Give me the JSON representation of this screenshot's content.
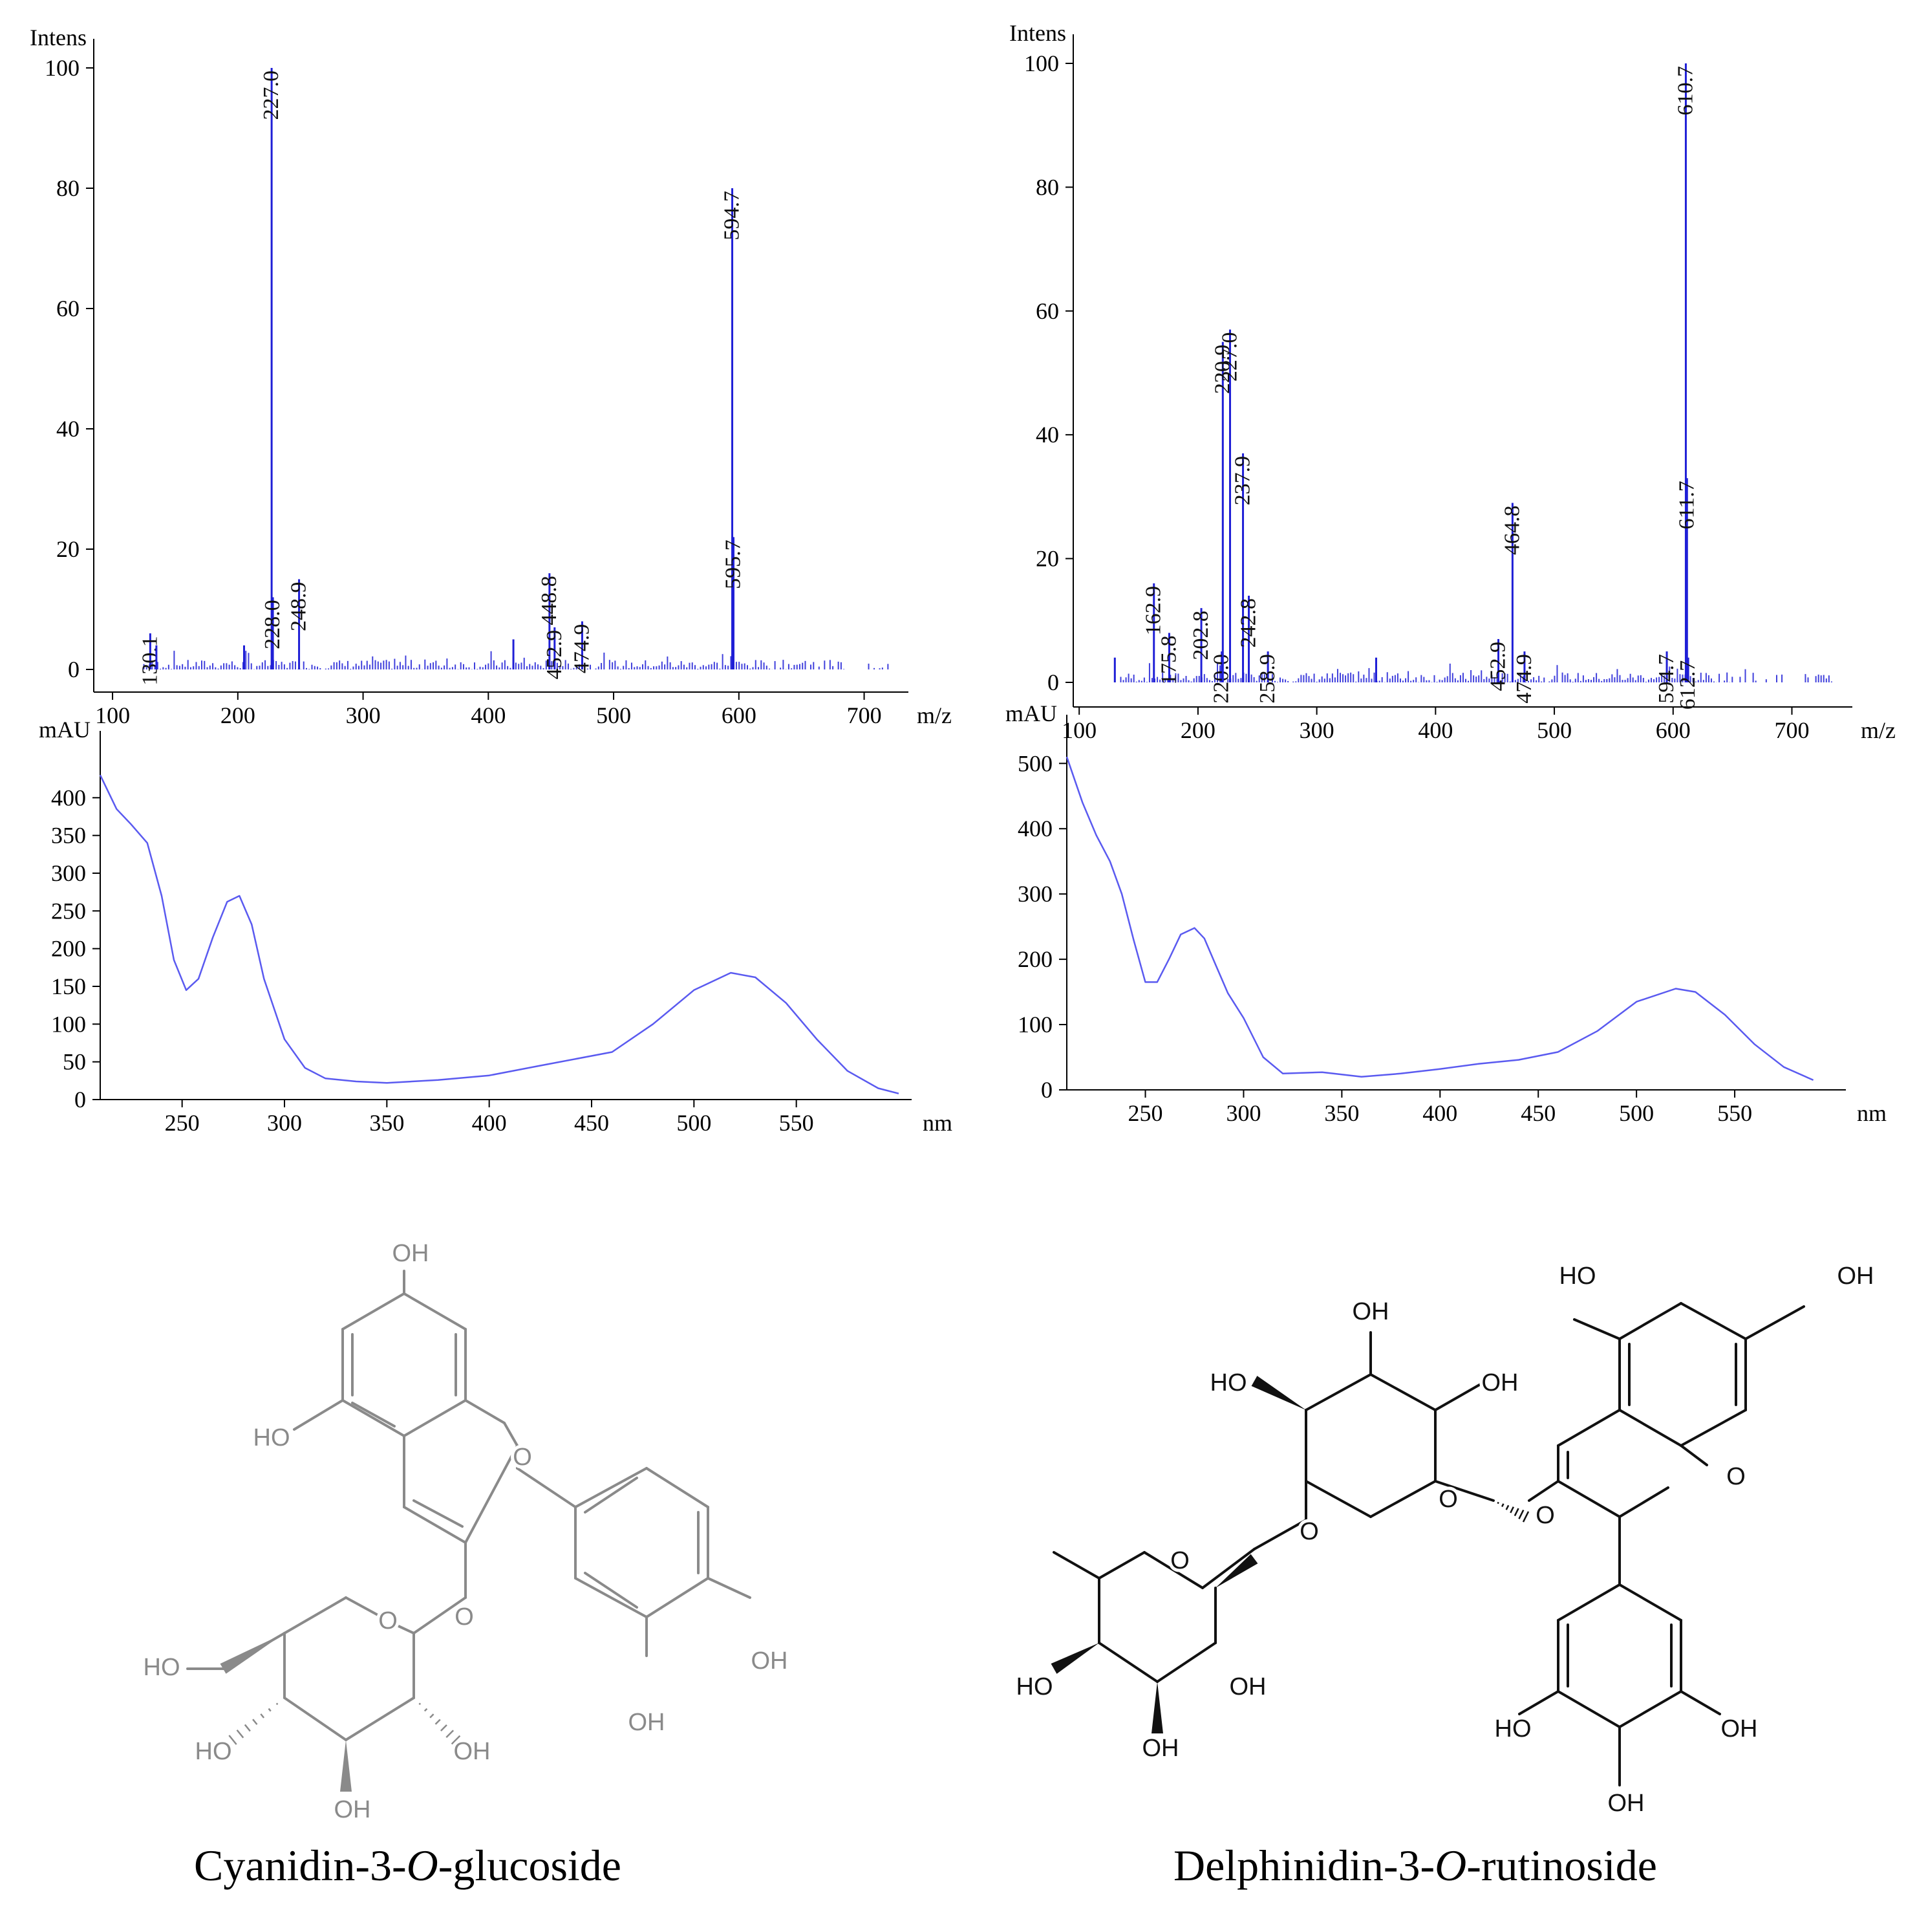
{
  "chart_data": [
    {
      "id": "ms-left",
      "type": "bar",
      "ylabel": "Intens",
      "xlabel": "m/z",
      "xlim": [
        85,
        725
      ],
      "ylim": [
        0,
        100
      ],
      "xticks": [
        100,
        200,
        300,
        400,
        500,
        600,
        700
      ],
      "yticks": [
        0,
        20,
        40,
        60,
        80,
        100
      ],
      "color": "#1f1fd6",
      "peaks": [
        {
          "x": 130.1,
          "y": 6,
          "label": "130.1"
        },
        {
          "x": 135.0,
          "y": 4,
          "label": ""
        },
        {
          "x": 205.0,
          "y": 4,
          "label": ""
        },
        {
          "x": 227.0,
          "y": 100,
          "label": "227.0"
        },
        {
          "x": 228.0,
          "y": 12,
          "label": "228.0"
        },
        {
          "x": 248.9,
          "y": 15,
          "label": "248.9"
        },
        {
          "x": 420.0,
          "y": 5,
          "label": ""
        },
        {
          "x": 448.8,
          "y": 16,
          "label": "448.8"
        },
        {
          "x": 452.9,
          "y": 7,
          "label": "452.9"
        },
        {
          "x": 474.9,
          "y": 8,
          "label": "474.9"
        },
        {
          "x": 594.7,
          "y": 80,
          "label": "594.7"
        },
        {
          "x": 595.7,
          "y": 22,
          "label": "595.7"
        }
      ]
    },
    {
      "id": "uv-left",
      "type": "line",
      "ylabel": "mAU",
      "xlabel": "nm",
      "xlim": [
        210,
        600
      ],
      "ylim": [
        0,
        450
      ],
      "xticks": [
        250,
        300,
        350,
        400,
        450,
        500,
        550
      ],
      "yticks": [
        0,
        50,
        100,
        150,
        200,
        250,
        300,
        350,
        400
      ],
      "color": "#5a5af0",
      "x": [
        210,
        218,
        225,
        233,
        240,
        246,
        252,
        258,
        265,
        272,
        278,
        284,
        290,
        300,
        310,
        320,
        335,
        350,
        375,
        400,
        425,
        460,
        480,
        500,
        518,
        530,
        545,
        560,
        575,
        590,
        600
      ],
      "y": [
        430,
        385,
        365,
        340,
        270,
        185,
        145,
        160,
        215,
        262,
        270,
        232,
        160,
        80,
        42,
        28,
        24,
        22,
        26,
        32,
        45,
        63,
        100,
        145,
        168,
        162,
        128,
        80,
        38,
        15,
        8
      ]
    },
    {
      "id": "ms-right",
      "type": "bar",
      "ylabel": "Intens",
      "xlabel": "m/z",
      "xlim": [
        95,
        740
      ],
      "ylim": [
        0,
        100
      ],
      "xticks": [
        100,
        200,
        300,
        400,
        500,
        600,
        700
      ],
      "yticks": [
        0,
        20,
        40,
        60,
        80,
        100
      ],
      "color": "#1f1fd6",
      "peaks": [
        {
          "x": 130.0,
          "y": 4,
          "label": ""
        },
        {
          "x": 162.9,
          "y": 16,
          "label": "162.9"
        },
        {
          "x": 175.8,
          "y": 8,
          "label": "175.8"
        },
        {
          "x": 202.8,
          "y": 12,
          "label": "202.8"
        },
        {
          "x": 220.0,
          "y": 5,
          "label": "220.0"
        },
        {
          "x": 220.9,
          "y": 55,
          "label": "220.9"
        },
        {
          "x": 227.0,
          "y": 57,
          "label": "227.0"
        },
        {
          "x": 237.9,
          "y": 37,
          "label": "237.9"
        },
        {
          "x": 242.8,
          "y": 14,
          "label": "242.8"
        },
        {
          "x": 258.9,
          "y": 5,
          "label": "258.9"
        },
        {
          "x": 350.0,
          "y": 4,
          "label": ""
        },
        {
          "x": 452.9,
          "y": 7,
          "label": "452.9"
        },
        {
          "x": 464.8,
          "y": 29,
          "label": "464.8"
        },
        {
          "x": 474.9,
          "y": 5,
          "label": "474.9"
        },
        {
          "x": 594.7,
          "y": 5,
          "label": "594.7"
        },
        {
          "x": 610.7,
          "y": 100,
          "label": "610.7"
        },
        {
          "x": 611.7,
          "y": 33,
          "label": "611.7"
        },
        {
          "x": 612.7,
          "y": 4,
          "label": "612.7"
        }
      ]
    },
    {
      "id": "uv-right",
      "type": "line",
      "ylabel": "mAU",
      "xlabel": "nm",
      "xlim": [
        210,
        600
      ],
      "ylim": [
        0,
        530
      ],
      "xticks": [
        250,
        300,
        350,
        400,
        450,
        500,
        550
      ],
      "yticks": [
        0,
        100,
        200,
        300,
        400,
        500
      ],
      "color": "#5a5af0",
      "x": [
        210,
        218,
        225,
        232,
        238,
        244,
        250,
        256,
        262,
        268,
        275,
        280,
        286,
        292,
        300,
        310,
        320,
        340,
        360,
        380,
        400,
        420,
        440,
        460,
        480,
        500,
        520,
        530,
        545,
        560,
        575,
        590
      ],
      "y": [
        510,
        440,
        390,
        350,
        300,
        230,
        165,
        165,
        200,
        238,
        248,
        232,
        190,
        148,
        110,
        50,
        25,
        27,
        20,
        25,
        32,
        40,
        46,
        58,
        90,
        135,
        155,
        150,
        115,
        70,
        35,
        15
      ]
    }
  ],
  "captions": {
    "left_prefix": "Cyanidin-3-",
    "left_italic": "O",
    "left_suffix": "-glucoside",
    "right_prefix": "Delphinidin-3-",
    "right_italic": "O",
    "right_suffix": "-rutinoside"
  },
  "structure_labels": {
    "oh": "OH",
    "ho": "HO",
    "o": "O"
  }
}
